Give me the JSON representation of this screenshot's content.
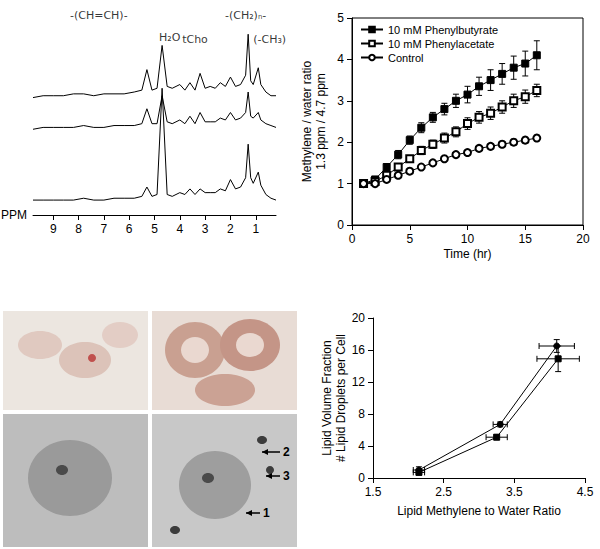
{
  "chart_data": [
    {
      "type": "line",
      "x": [
        9.8,
        9.4,
        9.0,
        8.6,
        8.2,
        7.8,
        7.4,
        7.0,
        6.6,
        6.2,
        5.8,
        5.5,
        5.3,
        5.1,
        4.9,
        4.7,
        4.5,
        4.3,
        4.0,
        3.8,
        3.6,
        3.4,
        3.2,
        3.0,
        2.8,
        2.6,
        2.4,
        2.2,
        2.0,
        1.8,
        1.6,
        1.4,
        1.3,
        1.2,
        1.1,
        0.9,
        0.8,
        0.6,
        0.4,
        0.2
      ],
      "series": [
        {
          "color": "#000000",
          "values": [
            63,
            64,
            64,
            64,
            65,
            65,
            64,
            65,
            65,
            65,
            66,
            67,
            78,
            67,
            68,
            91,
            69,
            68,
            70,
            67,
            71,
            67,
            76,
            68,
            69,
            68,
            71,
            69,
            74,
            69,
            70,
            75,
            97,
            72,
            70,
            79,
            70,
            66,
            64,
            64
          ]
        },
        {
          "color": "#000000",
          "values": [
            46,
            47,
            47,
            47,
            47,
            48,
            47,
            47,
            48,
            48,
            48,
            49,
            57,
            49,
            49,
            64,
            50,
            49,
            51,
            49,
            53,
            49,
            55,
            50,
            50,
            50,
            52,
            51,
            55,
            51,
            52,
            55,
            66,
            53,
            52,
            55,
            51,
            49,
            48,
            47
          ]
        },
        {
          "color": "#000000",
          "values": [
            8,
            8,
            8,
            8,
            8,
            9,
            8,
            8,
            9,
            9,
            9,
            10,
            15,
            10,
            11,
            68,
            11,
            10,
            12,
            11,
            14,
            11,
            14,
            12,
            12,
            12,
            14,
            13,
            19,
            14,
            15,
            20,
            38,
            20,
            17,
            23,
            16,
            11,
            9,
            8
          ]
        }
      ],
      "xlim": [
        9.8,
        0.2
      ],
      "xticks": [
        9,
        8,
        7,
        6,
        5,
        4,
        3,
        2,
        1
      ],
      "ylim": [
        0,
        110
      ],
      "x_label": "PPM",
      "tick_labels": "x",
      "grid": false,
      "annotations": [
        {
          "text": "-(CH=CH)-",
          "x": 7.2,
          "y": 107
        },
        {
          "text": "H₂O",
          "x": 4.4,
          "y": 95
        },
        {
          "text": "tCho",
          "x": 3.4,
          "y": 94
        },
        {
          "text": "-(CH₂)ₙ-",
          "x": 1.4,
          "y": 107
        },
        {
          "text": "(-CH₃)",
          "x": 0.45,
          "y": 94
        }
      ]
    },
    {
      "type": "line",
      "x": [
        1,
        2,
        3,
        4,
        5,
        6,
        7,
        8,
        9,
        10,
        11,
        12,
        13,
        14,
        15,
        16
      ],
      "series": [
        {
          "name": "10 mM Phenylbutyrate",
          "color": "#000000",
          "marker": "square",
          "values": [
            1.0,
            1.1,
            1.4,
            1.7,
            2.05,
            2.35,
            2.6,
            2.8,
            3.0,
            3.15,
            3.35,
            3.5,
            3.65,
            3.8,
            3.9,
            4.1
          ],
          "errors": [
            0.02,
            0.05,
            0.08,
            0.1,
            0.1,
            0.12,
            0.12,
            0.14,
            0.16,
            0.2,
            0.22,
            0.25,
            0.25,
            0.28,
            0.3,
            0.35
          ]
        },
        {
          "name": "10 mM Phenylacetate",
          "color": "#000000",
          "marker": "open_square",
          "values": [
            1.0,
            1.05,
            1.2,
            1.4,
            1.6,
            1.8,
            1.95,
            2.1,
            2.25,
            2.45,
            2.6,
            2.7,
            2.85,
            3.0,
            3.1,
            3.25
          ],
          "errors": [
            0.02,
            0.04,
            0.05,
            0.06,
            0.08,
            0.1,
            0.1,
            0.12,
            0.12,
            0.14,
            0.14,
            0.15,
            0.15,
            0.16,
            0.16,
            0.15
          ]
        },
        {
          "name": "Control",
          "color": "#000000",
          "marker": "open_circle",
          "values": [
            1.0,
            1.0,
            1.1,
            1.2,
            1.3,
            1.4,
            1.5,
            1.6,
            1.7,
            1.75,
            1.85,
            1.9,
            1.95,
            2.0,
            2.05,
            2.1
          ],
          "errors": [
            0.02,
            0.03,
            0.03,
            0.04,
            0.04,
            0.05,
            0.05,
            0.05,
            0.05,
            0.06,
            0.06,
            0.06,
            0.06,
            0.07,
            0.07,
            0.07
          ]
        }
      ],
      "xlim": [
        0,
        20
      ],
      "xticks": [
        0,
        5,
        10,
        15,
        20
      ],
      "ylim": [
        0,
        5
      ],
      "yticks": [
        0,
        1,
        2,
        3,
        4,
        5
      ],
      "x_label": "Time (hr)",
      "y_label": "Methylene / water ratio\n1.3 ppm / 4.7 ppm",
      "legend": "upper left",
      "grid": false
    },
    {
      "type": "line",
      "series": [
        {
          "color": "#000000",
          "marker": "circle",
          "x": [
            2.15,
            3.3,
            4.1
          ],
          "values": [
            1.0,
            6.7,
            16.5
          ],
          "x_errors": [
            0.08,
            0.1,
            0.25
          ],
          "errors": [
            0.4,
            0.3,
            0.8
          ]
        },
        {
          "color": "#000000",
          "marker": "square",
          "x": [
            2.15,
            3.25,
            4.12
          ],
          "values": [
            0.7,
            5.1,
            14.9
          ],
          "x_errors": [
            0.08,
            0.15,
            0.3
          ],
          "errors": [
            0.3,
            0.3,
            1.6
          ]
        }
      ],
      "xlim": [
        1.5,
        4.5
      ],
      "xticks": [
        1.5,
        2.5,
        3.5,
        4.5
      ],
      "ylim": [
        0,
        20
      ],
      "yticks": [
        0,
        4,
        8,
        12,
        16,
        20
      ],
      "x_label": "Lipid Methylene to Water Ratio",
      "y_label": "Lipid Volume Fraction\n# Lipid Droplets per Cell",
      "grid": false
    }
  ],
  "micrographs": {
    "labels": [
      "2",
      "3",
      "1"
    ]
  }
}
